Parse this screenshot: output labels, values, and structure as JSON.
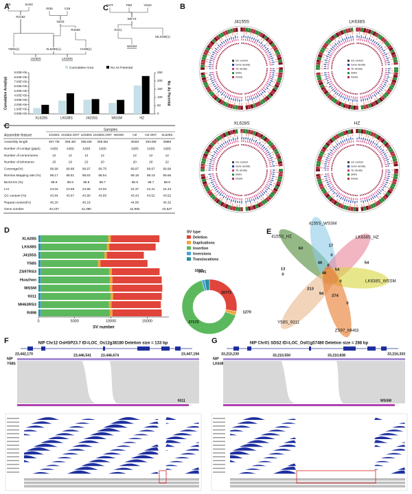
{
  "panel_labels": [
    "A",
    "C",
    "B",
    "C",
    "D",
    "E",
    "F",
    "G"
  ],
  "pedigree": {
    "nodes": [
      "IR8",
      "SH03",
      "IR36",
      "C49",
      "R2182",
      "NZ33",
      "R4458",
      "Y58S(1)",
      "XL628S(1)",
      "CH39(1)",
      "J4155S",
      "LK638S",
      "GOT",
      "FBZ",
      "VN23",
      "WEYZ",
      "RJ(1)",
      "WSSM",
      "MLSSM(1)"
    ]
  },
  "circos": {
    "titles": [
      "J4155S",
      "LK638S",
      "XL628S",
      "HZ"
    ],
    "legend": [
      "GC content",
      "Gene density",
      "TE density",
      "SNPs",
      "InDels"
    ]
  },
  "table": {
    "title": "Assemble feature",
    "group": "Samples",
    "columns": [
      "J4155S",
      "J4155S.ONT",
      "LK638S",
      "LK638S.ONT",
      "WSSM",
      "HZ",
      "HZ.ONT",
      "XL628S"
    ],
    "rows": [
      [
        "Assembly length",
        "397.7M",
        "395.4M",
        "395.6M",
        "395.5M",
        null,
        "394M",
        "393.8M",
        "398M"
      ],
      [
        "Number of contigs (gaps)",
        "12(0)",
        "12(0)",
        "12(0)",
        "12(0)",
        null,
        "12(0)",
        "12(0)",
        "12(0)"
      ],
      [
        "Number of centromeres",
        "12",
        "12",
        "12",
        "12",
        null,
        "12",
        "12",
        "12"
      ],
      [
        "Number of telomeres",
        "20",
        "19",
        "22",
        "20",
        null,
        "20",
        "20",
        "22"
      ],
      [
        "Coverage(%)",
        "99.99",
        "99.88",
        "99.97",
        "99.75",
        null,
        "99.97",
        "99.97",
        "99.98"
      ],
      [
        "Illumina Mapping rate (%)",
        "99.17",
        "98.81",
        "98.83",
        "98.54",
        null,
        "99.18",
        "99.19",
        "99.66"
      ],
      [
        "BUSCOs (%)",
        "98.9",
        "98.9",
        "98.8",
        "98.7",
        null,
        "98.9",
        "98.7",
        "98.8"
      ],
      [
        "LAI",
        "24.02",
        "23.59",
        "24.89",
        "23.02",
        null,
        "24.37",
        "24.31",
        "24.43"
      ],
      [
        "GC content (%)",
        "43.84",
        "43.67",
        "43.90",
        "43.65",
        null,
        "43.43",
        "43.62",
        "43.52"
      ],
      [
        "Repeat content(%)",
        "45.20",
        null,
        "45.18",
        null,
        null,
        "44.95",
        null,
        "45.32"
      ],
      [
        "Gene number",
        "43,237",
        null,
        "41,090",
        null,
        null,
        "42,992",
        null,
        "43,527"
      ]
    ]
  },
  "chart_data": [
    {
      "type": "bar",
      "ylabel": "Cumulative Area(bp)",
      "y2label": "No. As Parental",
      "categories": [
        "XL628S",
        "LK638S",
        "J4155S",
        "WSSM",
        "HZ"
      ],
      "series": [
        {
          "name": "Cumulative Area",
          "color": "#c6dfe8",
          "values": [
            1300000,
            2900000,
            3100000,
            2400000,
            6200000
          ]
        },
        {
          "name": "No As Parental",
          "color": "#000000",
          "axis": "y2",
          "values": [
            55,
            125,
            90,
            85,
            230
          ]
        }
      ],
      "ylim": [
        0,
        9000000
      ],
      "yticks": [
        {
          "value": 0,
          "label": "0.00E+00"
        },
        {
          "value": 1000000,
          "label": "1.00E+06"
        },
        {
          "value": 2000000,
          "label": "2.00E+06"
        },
        {
          "value": 3000000,
          "label": "3.00E+06"
        },
        {
          "value": 4000000,
          "label": "4.00E+06"
        },
        {
          "value": 5000000,
          "label": "5.00E+06"
        },
        {
          "value": 6000000,
          "label": "6.00E+06"
        },
        {
          "value": 7000000,
          "label": "7.00E+06"
        },
        {
          "value": 8000000,
          "label": "8.00E+06"
        },
        {
          "value": 9000000,
          "label": "9.00E+06"
        }
      ],
      "y2lim": [
        0,
        250
      ],
      "y2ticks": [
        0,
        50,
        100,
        150,
        200,
        250
      ]
    },
    {
      "type": "bar_stacked_horizontal",
      "xlabel": "SV number",
      "legend_title": "SV type",
      "categories": [
        "XL628S",
        "LK638S",
        "J4155S",
        "Y58S",
        "ZS97RS3",
        "Huazhan",
        "WSSM",
        "9311",
        "MH63RS3",
        "R498"
      ],
      "series": [
        {
          "name": "Deletion",
          "color": "#e0443a",
          "values": [
            6700,
            6400,
            5100,
            6500,
            6600,
            6800,
            6900,
            6700,
            6800,
            6800
          ]
        },
        {
          "name": "Duplications",
          "color": "#f2a43a",
          "values": [
            350,
            340,
            330,
            330,
            360,
            360,
            350,
            360,
            350,
            360
          ]
        },
        {
          "name": "Insertion",
          "color": "#5cb85c",
          "values": [
            9300,
            9100,
            8800,
            7900,
            9400,
            9500,
            9500,
            9600,
            9400,
            9500
          ]
        },
        {
          "name": "Inversions",
          "color": "#4aa3d9",
          "values": [
            90,
            90,
            80,
            85,
            95,
            95,
            90,
            95,
            90,
            95
          ]
        },
        {
          "name": "Translocations",
          "color": "#2a8f9c",
          "values": [
            250,
            240,
            230,
            230,
            260,
            250,
            250,
            260,
            250,
            250
          ]
        }
      ],
      "xlim": [
        0,
        18000
      ],
      "xticks": [
        0,
        5000,
        10000,
        15000
      ]
    },
    {
      "type": "pie",
      "values": [
        15771,
        1270,
        37172,
        1013,
        1591
      ]
    }
  ],
  "venn": {
    "sets": [
      "4155S_HZ",
      "4155S_WSSM",
      "LK638S_HZ",
      "LK638S_WSSM",
      "Y58S_9311",
      "ZS97_MH63"
    ],
    "counts": [
      63,
      17,
      54,
      13,
      0,
      46,
      0,
      46,
      0,
      54,
      0,
      213,
      94,
      274,
      0
    ]
  },
  "panel_f": {
    "title": "NIP Chr12 OsHSP23.7 ID=LOC_Os12g38180 Deletion size = 133 bp",
    "start": "23,442,170",
    "end": "23,447,194",
    "del_start": "23,446,541",
    "del_end": "23,446,674",
    "ref": "NIP",
    "query": "Y58S",
    "other": "9311"
  },
  "panel_g": {
    "title": "NIP Chr01 SDS2 ID=LOC_Os01g57480 Deletion size = 288 bp",
    "start": "33,210,230",
    "end": "33,216,333",
    "del_start": "33,210,550",
    "del_end": "33,210,838",
    "ref": "NIP",
    "query": "LK638S",
    "other": "WSSM"
  }
}
